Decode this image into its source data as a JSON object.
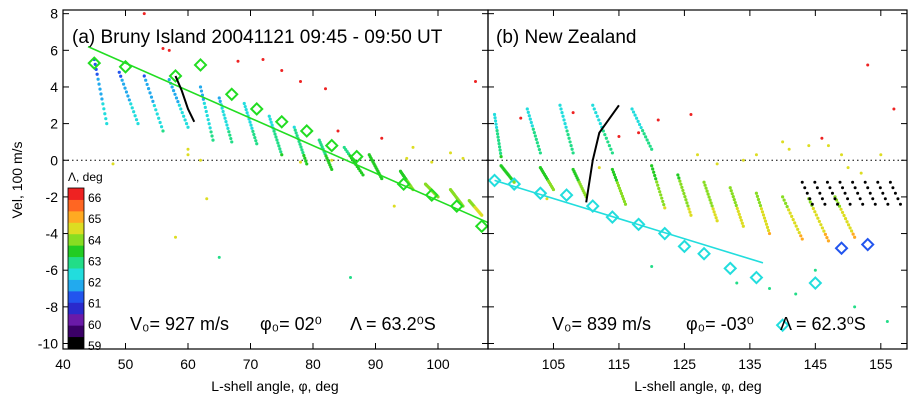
{
  "colors": {
    "fit_a": "#22dd22",
    "fit_b": "#22dddd",
    "trace": "#000000",
    "zero_line": "#000000",
    "colorbar": [
      "#000000",
      "#3a0066",
      "#6a1aa8",
      "#2a2acc",
      "#2255ee",
      "#22aaee",
      "#22dddd",
      "#22dd88",
      "#22cc22",
      "#88dd22",
      "#dddd22",
      "#ffaa22",
      "#ff6622",
      "#ee2222"
    ]
  },
  "shared": {
    "ylabel": "Vel, 100 m/s",
    "xlabel": "L-shell angle, φ, deg",
    "colorbar_title": "Λ, deg",
    "colorbar_ticks": [
      "66",
      "65",
      "64",
      "63",
      "62",
      "61",
      "60",
      "59"
    ]
  },
  "panel_a": {
    "title": "(a) Bruny Island 20041121   09:45 - 09:50 UT",
    "params": {
      "v0": "V₀= 927 m/s",
      "phi0": "φ₀= 02⁰",
      "lambda": "Λ = 63.2⁰S"
    }
  },
  "panel_b": {
    "title": "(b) New Zealand",
    "params": {
      "v0": "V₀= 839 m/s",
      "phi0": "φ₀= -03⁰",
      "lambda": "Λ = 62.3⁰S"
    }
  },
  "chart_data": [
    {
      "type": "scatter",
      "title": "(a) Bruny Island 20041121   09:45 - 09:50 UT",
      "xlabel": "L-shell angle, φ, deg",
      "ylabel": "Vel, 100 m/s",
      "xlim": [
        40,
        108
      ],
      "ylim": [
        -10.3,
        8.2
      ],
      "xticks": [
        40,
        50,
        60,
        70,
        80,
        90,
        100
      ],
      "yticks": [
        -10,
        -8,
        -6,
        -4,
        -2,
        0,
        2,
        4,
        6,
        8
      ],
      "fit_line": {
        "x": [
          44,
          108
        ],
        "y": [
          6.2,
          -3.4
        ]
      },
      "diamonds": {
        "x": [
          45,
          50,
          58,
          62,
          67,
          71,
          75,
          79,
          83,
          87,
          94.5,
          99,
          103,
          107
        ],
        "y": [
          5.3,
          5.1,
          4.6,
          5.2,
          3.6,
          2.8,
          2.1,
          1.6,
          0.8,
          0.2,
          -1.3,
          -1.9,
          -2.5,
          -3.6
        ]
      },
      "trace": {
        "x": [
          58,
          59,
          60,
          61
        ],
        "y": [
          4.6,
          3.8,
          2.8,
          2.1
        ]
      },
      "scans": [
        {
          "x0": 45,
          "y0": 5.5,
          "x1": 47,
          "y1": 2.0
        },
        {
          "x0": 49,
          "y0": 4.8,
          "x1": 52,
          "y1": 2.0
        },
        {
          "x0": 53,
          "y0": 4.6,
          "x1": 56,
          "y1": 1.6
        },
        {
          "x0": 57,
          "y0": 4.4,
          "x1": 60,
          "y1": 1.8
        },
        {
          "x0": 62,
          "y0": 4.0,
          "x1": 64,
          "y1": 1.1
        },
        {
          "x0": 65,
          "y0": 3.4,
          "x1": 67,
          "y1": 1.0
        },
        {
          "x0": 69,
          "y0": 3.1,
          "x1": 71,
          "y1": 0.9
        },
        {
          "x0": 73,
          "y0": 2.4,
          "x1": 75,
          "y1": 0.3
        },
        {
          "x0": 77,
          "y0": 1.8,
          "x1": 79,
          "y1": -0.2
        },
        {
          "x0": 81,
          "y0": 1.1,
          "x1": 83,
          "y1": -0.5
        },
        {
          "x0": 85,
          "y0": 0.7,
          "x1": 88,
          "y1": -0.8
        },
        {
          "x0": 89,
          "y0": 0.3,
          "x1": 91,
          "y1": -1.0
        },
        {
          "x0": 94,
          "y0": -0.6,
          "x1": 96,
          "y1": -1.6
        },
        {
          "x0": 98,
          "y0": -1.3,
          "x1": 100,
          "y1": -2.0
        },
        {
          "x0": 102,
          "y0": -1.6,
          "x1": 104,
          "y1": -2.5
        },
        {
          "x0": 105,
          "y0": -2.2,
          "x1": 107,
          "y1": -3.0
        }
      ],
      "scattered": {
        "x": [
          53,
          56,
          57,
          60,
          63,
          68,
          72,
          75,
          78,
          82,
          84,
          91,
          93,
          96,
          102,
          104,
          106,
          58,
          65,
          86,
          99,
          48,
          60,
          62,
          78,
          83,
          95
        ],
        "y": [
          8.0,
          6.1,
          6.0,
          0.3,
          -2.1,
          5.4,
          5.5,
          4.9,
          4.3,
          3.9,
          1.6,
          1.2,
          -2.5,
          0.7,
          0.4,
          0.1,
          4.3,
          -4.2,
          -5.3,
          -6.4,
          -0.1,
          -0.2,
          0.6,
          0.0,
          -0.1,
          0.0,
          0.1
        ]
      },
      "colorbar": {
        "title": "Λ, deg",
        "ticks": [
          66,
          65,
          64,
          63,
          62,
          61,
          60,
          59
        ]
      },
      "annotations": [
        "V₀= 927 m/s",
        "φ₀= 02⁰",
        "Λ = 63.2⁰S"
      ]
    },
    {
      "type": "scatter",
      "title": "(b) New Zealand",
      "xlabel": "L-shell angle, φ, deg",
      "xlim": [
        95,
        159
      ],
      "ylim": [
        -10.3,
        8.2
      ],
      "xticks": [
        105,
        115,
        125,
        135,
        145,
        155
      ],
      "yticks": [
        -10,
        -8,
        -6,
        -4,
        -2,
        0,
        2,
        4,
        6,
        8
      ],
      "fit_line": {
        "x": [
          96,
          137
        ],
        "y": [
          -1.1,
          -5.6
        ]
      },
      "diamonds": {
        "x": [
          96,
          99,
          103,
          107,
          111,
          114,
          118,
          122,
          125,
          128,
          132,
          136,
          140,
          145,
          149,
          153
        ],
        "y": [
          -1.1,
          -1.3,
          -1.8,
          -1.9,
          -2.5,
          -3.1,
          -3.5,
          -4.0,
          -4.7,
          -5.1,
          -5.9,
          -6.4,
          -9.0,
          -6.7,
          -4.8,
          -4.6
        ]
      },
      "trace": {
        "x": [
          110,
          111,
          112,
          114,
          115
        ],
        "y": [
          -2.3,
          0.0,
          1.5,
          2.5,
          3.0
        ]
      },
      "scans": [
        {
          "x0": 96,
          "y0": 2.5,
          "x1": 97,
          "y1": 0.2
        },
        {
          "x0": 97,
          "y0": -0.3,
          "x1": 99,
          "y1": -1.2
        },
        {
          "x0": 101,
          "y0": 2.8,
          "x1": 103,
          "y1": 0.4
        },
        {
          "x0": 103,
          "y0": -0.4,
          "x1": 105,
          "y1": -1.6
        },
        {
          "x0": 106,
          "y0": 3.0,
          "x1": 108,
          "y1": 0.4
        },
        {
          "x0": 108,
          "y0": -0.5,
          "x1": 110,
          "y1": -2.0
        },
        {
          "x0": 111,
          "y0": 3.0,
          "x1": 114,
          "y1": 0.4
        },
        {
          "x0": 114,
          "y0": -0.5,
          "x1": 116,
          "y1": -2.4
        },
        {
          "x0": 117,
          "y0": 2.8,
          "x1": 120,
          "y1": 0.6
        },
        {
          "x0": 120,
          "y0": -0.3,
          "x1": 122,
          "y1": -2.6
        },
        {
          "x0": 124,
          "y0": -0.8,
          "x1": 126,
          "y1": -3.0
        },
        {
          "x0": 128,
          "y0": -1.2,
          "x1": 130,
          "y1": -3.3
        },
        {
          "x0": 132,
          "y0": -1.5,
          "x1": 134,
          "y1": -3.6
        },
        {
          "x0": 136,
          "y0": -1.8,
          "x1": 138,
          "y1": -4.0
        },
        {
          "x0": 140,
          "y0": -2.0,
          "x1": 143,
          "y1": -4.3
        },
        {
          "x0": 144,
          "y0": -2.1,
          "x1": 147,
          "y1": -4.4
        },
        {
          "x0": 148,
          "y0": -2.0,
          "x1": 151,
          "y1": -4.2
        }
      ],
      "black_band": {
        "x": [
          143,
          158
        ],
        "y": [
          -1.2,
          -2.4
        ]
      },
      "scattered": {
        "x": [
          100,
          108,
          115,
          118,
          121,
          126,
          127,
          130,
          134,
          136,
          140,
          141,
          144,
          146,
          147,
          149,
          150,
          152,
          155,
          153,
          157,
          112,
          133,
          138,
          142,
          151,
          156,
          104,
          120,
          145
        ],
        "y": [
          2.3,
          2.6,
          1.3,
          1.5,
          2.2,
          2.5,
          0.3,
          -0.2,
          0.0,
          0.3,
          1.0,
          0.6,
          0.8,
          1.2,
          0.8,
          0.3,
          -0.4,
          -0.7,
          0.3,
          5.2,
          2.8,
          -0.4,
          -6.7,
          -7.0,
          -7.3,
          -8.0,
          -8.8,
          -2.1,
          -5.8,
          -6.0
        ]
      },
      "annotations": [
        "V₀= 839 m/s",
        "φ₀= -03⁰",
        "Λ = 62.3⁰S"
      ]
    }
  ]
}
